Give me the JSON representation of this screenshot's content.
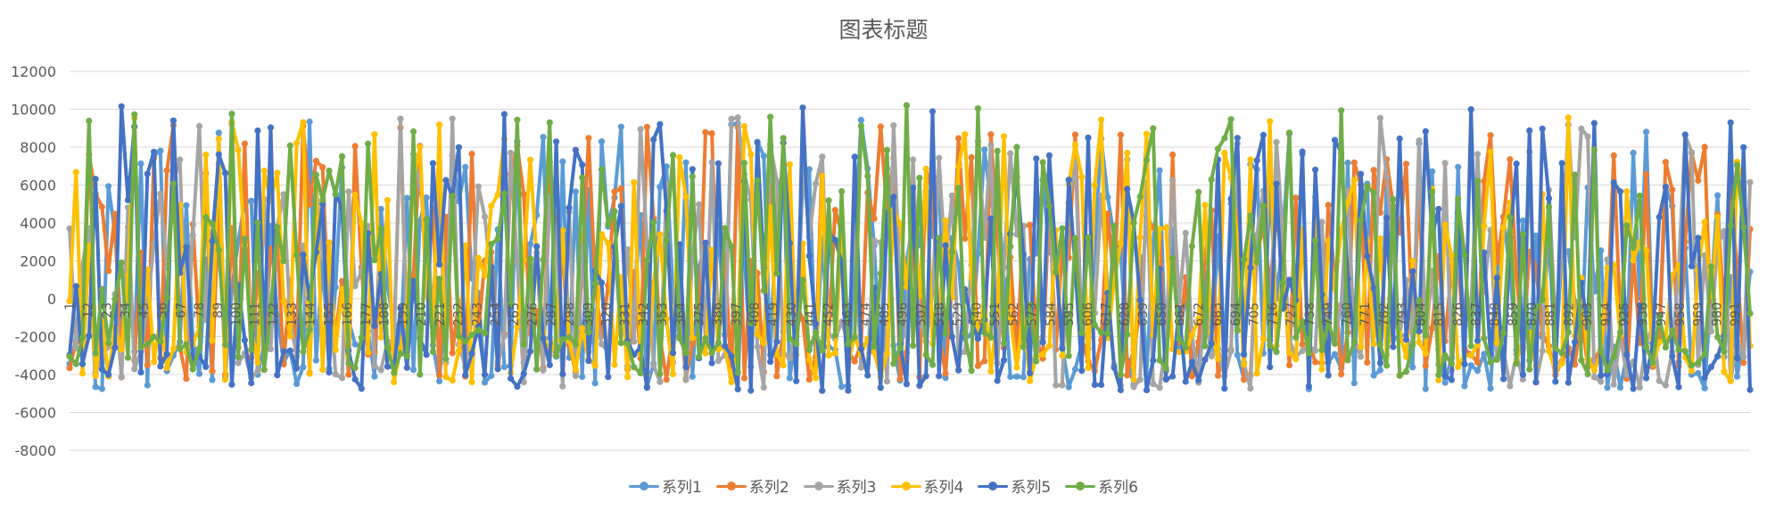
{
  "chart_data": {
    "type": "line",
    "title": "图表标题",
    "xlabel": "",
    "ylabel": "",
    "ylim": [
      -8000,
      12000
    ],
    "yticks": [
      -8000,
      -6000,
      -4000,
      -2000,
      0,
      2000,
      4000,
      6000,
      8000,
      10000,
      12000
    ],
    "x_range": [
      1,
      1000
    ],
    "x_tick_labels": [
      "1",
      "12",
      "23",
      "34",
      "45",
      "56",
      "67",
      "78",
      "89",
      "100",
      "111",
      "122",
      "133",
      "144",
      "155",
      "166",
      "177",
      "188",
      "199",
      "210",
      "221",
      "232",
      "243",
      "254",
      "265",
      "276",
      "287",
      "298",
      "309",
      "320",
      "331",
      "342",
      "353",
      "364",
      "375",
      "386",
      "397",
      "408",
      "419",
      "430",
      "441",
      "452",
      "463",
      "474",
      "485",
      "496",
      "507",
      "518",
      "529",
      "540",
      "551",
      "562",
      "573",
      "584",
      "595",
      "606",
      "617",
      "628",
      "639",
      "650",
      "661",
      "672",
      "683",
      "694",
      "705",
      "716",
      "727",
      "738",
      "749",
      "760",
      "771",
      "782",
      "793",
      "804",
      "815",
      "826",
      "837",
      "848",
      "859",
      "870",
      "881",
      "892",
      "903",
      "914",
      "925",
      "936",
      "947",
      "958",
      "969",
      "980",
      "991"
    ],
    "markers": true,
    "grid": "horizontal",
    "legend_position": "bottom",
    "series": [
      {
        "name": "系列1",
        "color": "#5B9BD5",
        "range": [
          -5300,
          9500
        ]
      },
      {
        "name": "系列2",
        "color": "#ED7D31",
        "range": [
          -4800,
          9200
        ]
      },
      {
        "name": "系列3",
        "color": "#A5A5A5",
        "range": [
          -5300,
          9600
        ]
      },
      {
        "name": "系列4",
        "color": "#FFC000",
        "range": [
          -4900,
          9600
        ]
      },
      {
        "name": "系列5",
        "color": "#4472C4",
        "range": [
          -5400,
          10200
        ]
      },
      {
        "name": "系列6",
        "color": "#70AD47",
        "range": [
          -4600,
          10300
        ]
      }
    ]
  }
}
